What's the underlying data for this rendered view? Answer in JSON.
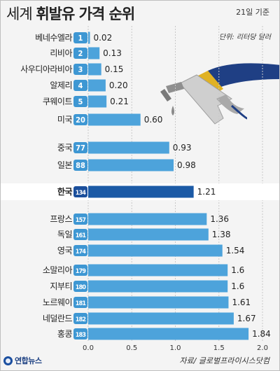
{
  "header": {
    "title_part1": "세계",
    "title_part2": "휘발유 가격 순위",
    "date_note": "21일 기준",
    "unit_note": "단위: 리터당 달러"
  },
  "footer": {
    "logo_text": "연합뉴스",
    "source_note": "자료/ 글로벌프라이시스닷컴"
  },
  "colors": {
    "bar": "#4da3db",
    "highlight_bar": "#1b5aa6",
    "highlight_row": "#1b4f9c",
    "badge": "#3e97d3"
  },
  "chart_data": {
    "type": "bar",
    "orientation": "horizontal",
    "title": "세계 휘발유 가격 순위",
    "unit": "단위: 리터당 달러",
    "categories": [
      "베네수엘라",
      "리비아",
      "사우디아라비아",
      "알제리",
      "쿠웨이트",
      "미국",
      "중국",
      "일본",
      "한국",
      "프랑스",
      "독일",
      "영국",
      "소말리아",
      "지부티",
      "노르웨이",
      "네덜란드",
      "홍콩"
    ],
    "ranks": [
      "1",
      "2",
      "3",
      "4",
      "5",
      "20",
      "77",
      "88",
      "134",
      "157",
      "161",
      "174",
      "179",
      "180",
      "181",
      "182",
      "183"
    ],
    "values": [
      0.02,
      0.13,
      0.15,
      0.2,
      0.21,
      0.6,
      0.93,
      0.98,
      1.21,
      1.36,
      1.38,
      1.54,
      1.6,
      1.6,
      1.61,
      1.67,
      1.84
    ],
    "value_labels": [
      "0.02",
      "0.13",
      "0.15",
      "0.20",
      "0.21",
      "0.60",
      "0.93",
      "0.98",
      "1.21",
      "1.36",
      "1.38",
      "1.54",
      "1.6",
      "1.6",
      "1.61",
      "1.67",
      "1.84"
    ],
    "highlight": "한국",
    "xlim": [
      0,
      2.0
    ],
    "xticks": [
      "0.0",
      "0.5",
      "1.0",
      "1.5",
      "2.0"
    ],
    "grid": true
  }
}
